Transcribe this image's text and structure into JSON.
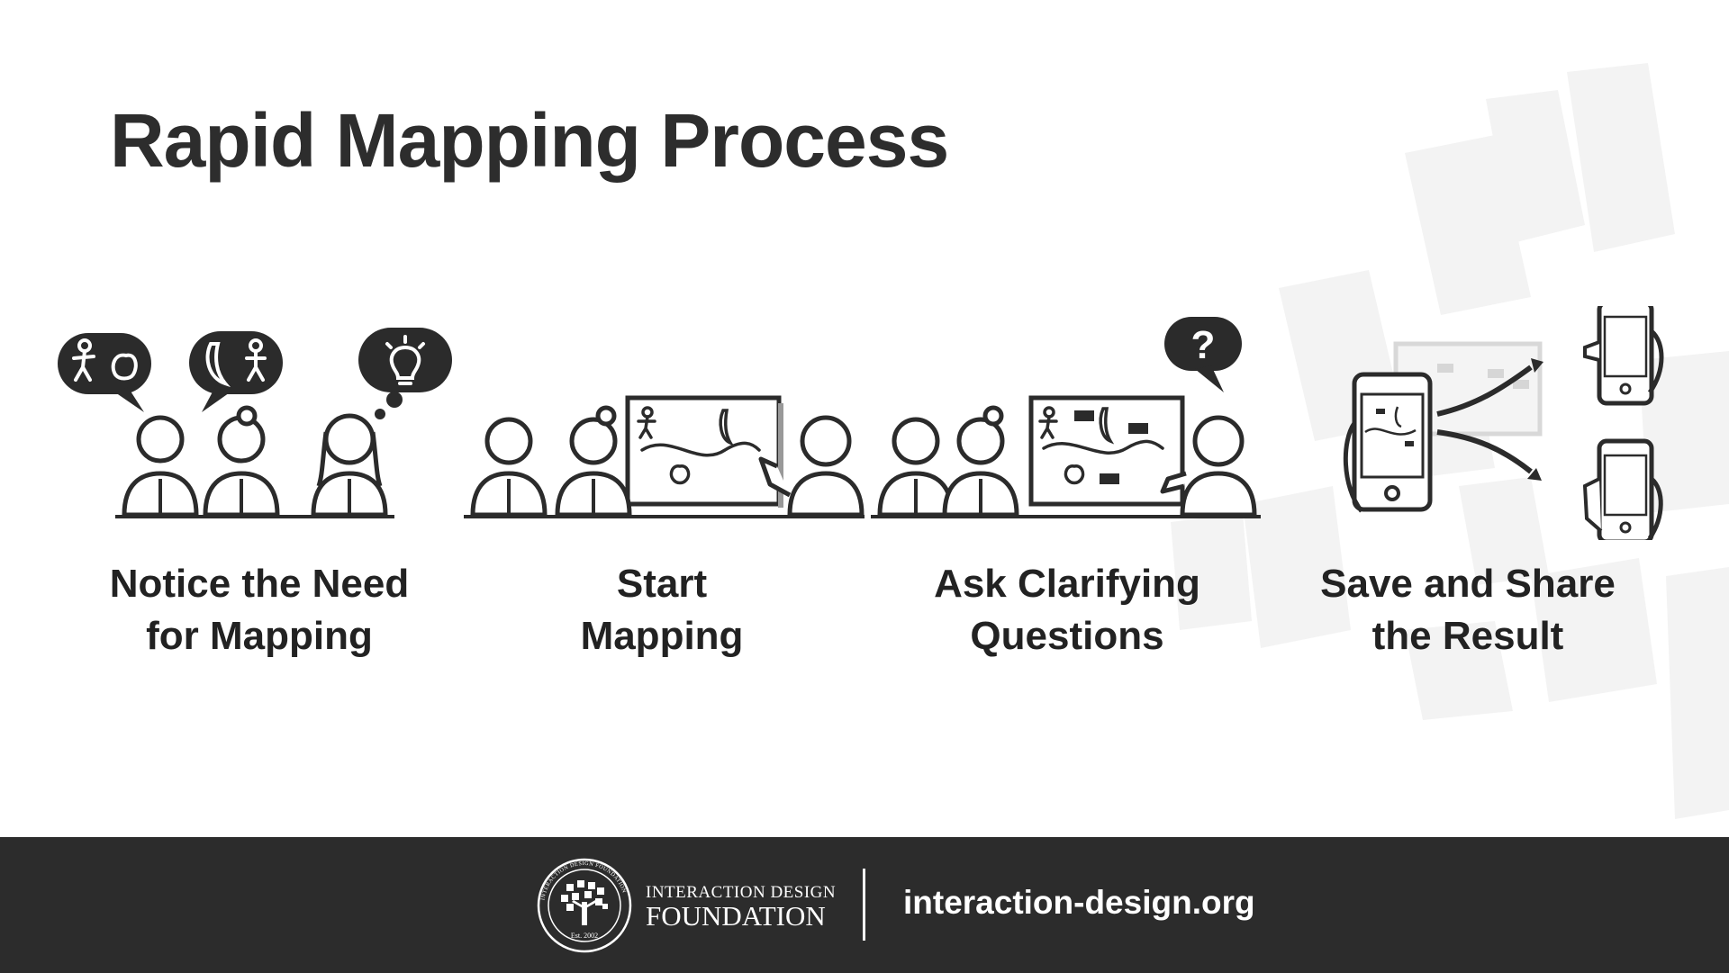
{
  "title": "Rapid Mapping Process",
  "steps": [
    {
      "line1": "Notice the Need",
      "line2": "for Mapping",
      "icon": "people-with-thought-bubbles-icon"
    },
    {
      "line1": "Start",
      "line2": "Mapping",
      "icon": "people-mapping-on-board-icon"
    },
    {
      "line1": "Ask Clarifying",
      "line2": "Questions",
      "icon": "people-asking-question-icon"
    },
    {
      "line1": "Save and Share",
      "line2": "the Result",
      "icon": "phone-share-icon"
    }
  ],
  "question_mark": "?",
  "footer": {
    "org_line1": "INTERACTION DESIGN",
    "org_line2": "FOUNDATION",
    "logo_ring_text": "INTERACTION DESIGN FOUNDATION",
    "logo_est": "Est. 2002",
    "url": "interaction-design.org"
  },
  "colors": {
    "dark": "#2c2c2c",
    "background": "#ffffff",
    "decor": "#f2f2f2"
  }
}
